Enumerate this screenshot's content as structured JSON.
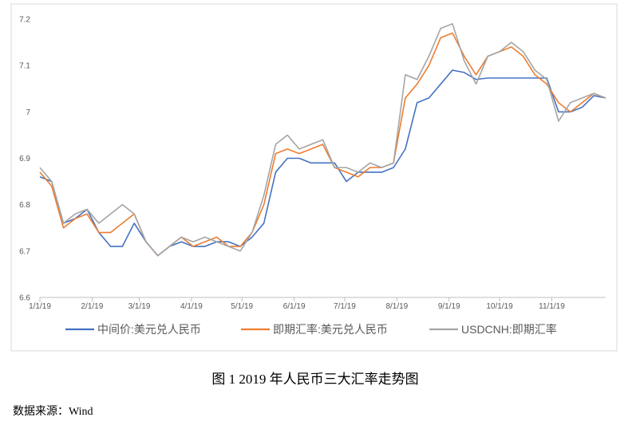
{
  "chart_data": {
    "type": "line",
    "x": [
      "1/1/19",
      "1/8/19",
      "1/15/19",
      "1/22/19",
      "1/29/19",
      "2/5/19",
      "2/12/19",
      "2/19/19",
      "2/26/19",
      "3/5/19",
      "3/12/19",
      "3/19/19",
      "3/26/19",
      "4/2/19",
      "4/9/19",
      "4/16/19",
      "4/23/19",
      "4/30/19",
      "5/7/19",
      "5/14/19",
      "5/21/19",
      "5/28/19",
      "6/4/19",
      "6/11/19",
      "6/18/19",
      "6/25/19",
      "7/2/19",
      "7/9/19",
      "7/16/19",
      "7/23/19",
      "7/30/19",
      "8/6/19",
      "8/13/19",
      "8/20/19",
      "8/27/19",
      "9/3/19",
      "9/10/19",
      "9/17/19",
      "9/24/19",
      "10/1/19",
      "10/8/19",
      "10/15/19",
      "10/22/19",
      "10/29/19",
      "11/5/19",
      "11/12/19",
      "11/19/19",
      "11/26/19",
      "12/3/19"
    ],
    "series": [
      {
        "name": "中间价:美元兑人民币",
        "color": "#4472c4",
        "values": [
          6.86,
          6.85,
          6.76,
          6.77,
          6.79,
          6.74,
          6.71,
          6.71,
          6.76,
          6.72,
          6.69,
          6.71,
          6.72,
          6.71,
          6.71,
          6.72,
          6.72,
          6.71,
          6.73,
          6.76,
          6.87,
          6.9,
          6.9,
          6.89,
          6.89,
          6.89,
          6.85,
          6.87,
          6.87,
          6.87,
          6.88,
          6.92,
          7.02,
          7.03,
          7.06,
          7.09,
          7.085,
          7.07,
          7.073,
          7.073,
          7.073,
          7.073,
          7.073,
          7.073,
          7.0,
          7.0,
          7.01,
          7.035,
          7.03
        ]
      },
      {
        "name": "即期汇率:美元兑人民币",
        "color": "#ed7d31",
        "values": [
          6.87,
          6.84,
          6.75,
          6.77,
          6.78,
          6.74,
          6.74,
          6.76,
          6.78,
          6.72,
          6.69,
          6.71,
          6.73,
          6.71,
          6.72,
          6.73,
          6.71,
          6.71,
          6.74,
          6.8,
          6.91,
          6.92,
          6.91,
          6.92,
          6.93,
          6.88,
          6.87,
          6.86,
          6.88,
          6.88,
          6.89,
          7.03,
          7.06,
          7.1,
          7.16,
          7.17,
          7.12,
          7.08,
          7.12,
          7.13,
          7.14,
          7.12,
          7.08,
          7.06,
          7.02,
          7.0,
          7.02,
          7.04,
          7.03
        ]
      },
      {
        "name": "USDCNH:即期汇率",
        "color": "#a5a5a5",
        "values": [
          6.88,
          6.85,
          6.76,
          6.78,
          6.79,
          6.76,
          6.78,
          6.8,
          6.78,
          6.72,
          6.69,
          6.71,
          6.73,
          6.72,
          6.73,
          6.72,
          6.71,
          6.7,
          6.74,
          6.82,
          6.93,
          6.95,
          6.92,
          6.93,
          6.94,
          6.88,
          6.88,
          6.87,
          6.89,
          6.88,
          6.89,
          7.08,
          7.07,
          7.12,
          7.18,
          7.19,
          7.11,
          7.06,
          7.12,
          7.13,
          7.15,
          7.13,
          7.09,
          7.07,
          6.98,
          7.02,
          7.03,
          7.04,
          7.03
        ]
      }
    ],
    "xlim": [
      "1/1/19",
      "12/3/19"
    ],
    "xticks": [
      "1/1/19",
      "2/1/19",
      "3/1/19",
      "4/1/19",
      "5/1/19",
      "6/1/19",
      "7/1/19",
      "8/1/19",
      "9/1/19",
      "10/1/19",
      "11/1/19"
    ],
    "ylim": [
      6.6,
      7.2
    ],
    "yticks": [
      6.6,
      6.7,
      6.8,
      6.9,
      7,
      7.1,
      7.2
    ],
    "grid": false,
    "legend": "bottom"
  },
  "caption": "图 1 2019 年人民币三大汇率走势图",
  "source": "数据来源：Wind"
}
